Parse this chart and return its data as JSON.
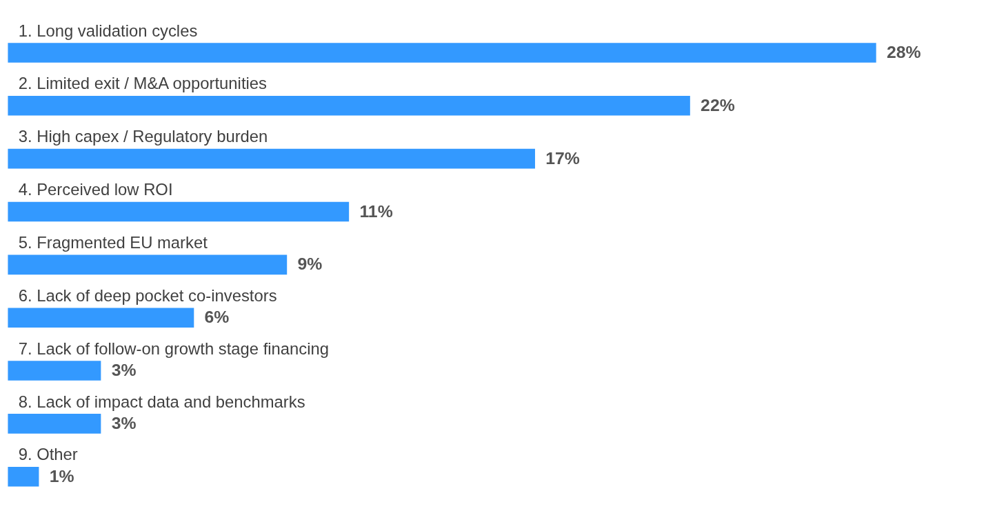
{
  "chart_data": {
    "type": "bar",
    "orientation": "horizontal",
    "categories": [
      "1. Long validation cycles",
      "2. Limited exit / M&A opportunities",
      "3. High capex / Regulatory burden",
      "4. Perceived low ROI",
      "5. Fragmented EU market",
      "6. Lack of deep pocket co-investors",
      "7. Lack of follow-on growth stage financing",
      "8. Lack of impact data and benchmarks",
      "9. Other"
    ],
    "values": [
      28,
      22,
      17,
      11,
      9,
      6,
      3,
      3,
      1
    ],
    "value_labels": [
      "28%",
      "22%",
      "17%",
      "11%",
      "9%",
      "6%",
      "3%",
      "3%",
      "1%"
    ],
    "color": "#3399ff"
  }
}
